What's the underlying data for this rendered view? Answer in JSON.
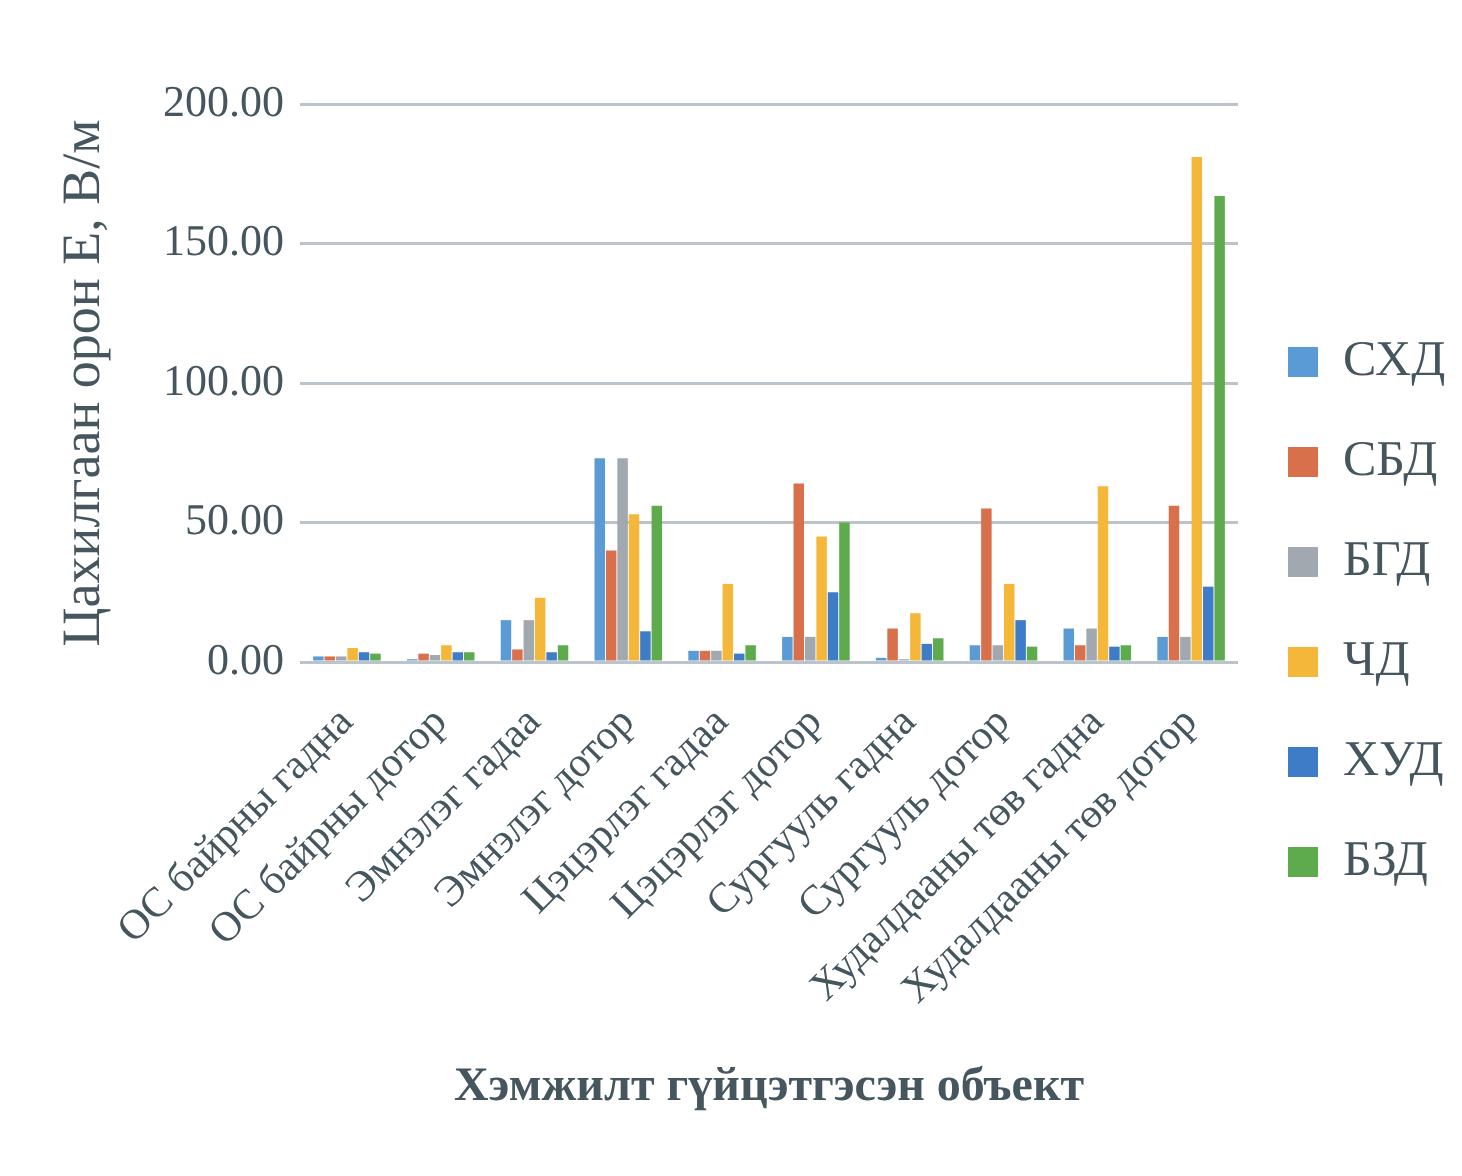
{
  "chart_data": {
    "type": "bar",
    "xlabel": "Хэмжилт гүйцэтгэсэн объект",
    "ylabel": "Цахилгаан орон E, В/м",
    "categories": [
      "ОС байрны гадна",
      "ОС байрны дотор",
      "Эмнэлэг гадаа",
      "Эмнэлэг дотор",
      "Цэцэрлэг гадаа",
      "Цэцэрлэг дотор",
      "Сургууль гадна",
      "Сургууль дотор",
      "Худалдааны төв гадна",
      "Худалдааны төв дотор"
    ],
    "series": [
      {
        "name": "СХД",
        "color": "#5b9bd5",
        "values": [
          2,
          1,
          15,
          73,
          4,
          9,
          1.5,
          6,
          12,
          9
        ]
      },
      {
        "name": "СБД",
        "color": "#d8704c",
        "values": [
          2,
          3,
          4.5,
          40,
          4,
          64,
          12,
          55,
          6,
          56
        ]
      },
      {
        "name": "БГД",
        "color": "#a2a8b0",
        "values": [
          2,
          2.5,
          15,
          73,
          4,
          9,
          1,
          6,
          12,
          9
        ]
      },
      {
        "name": "ЧД",
        "color": "#f4b73a",
        "values": [
          5,
          6,
          23,
          53,
          28,
          45,
          17.5,
          28,
          63,
          181
        ]
      },
      {
        "name": "ХУД",
        "color": "#3f7cc8",
        "values": [
          3.5,
          3.5,
          3.5,
          11,
          3,
          25,
          6.5,
          15,
          5.5,
          27
        ]
      },
      {
        "name": "БЗД",
        "color": "#5eab4e",
        "values": [
          3,
          3.5,
          6,
          56,
          6,
          50,
          8.5,
          5.5,
          6,
          167
        ]
      }
    ],
    "ylim": [
      0,
      200
    ],
    "yticks": [
      {
        "value": 0,
        "label": "0.00"
      },
      {
        "value": 50,
        "label": "50.00"
      },
      {
        "value": 100,
        "label": "100.00"
      },
      {
        "value": 150,
        "label": "150.00"
      },
      {
        "value": 200,
        "label": "200.00"
      }
    ],
    "grid": "y",
    "legend": "right"
  }
}
